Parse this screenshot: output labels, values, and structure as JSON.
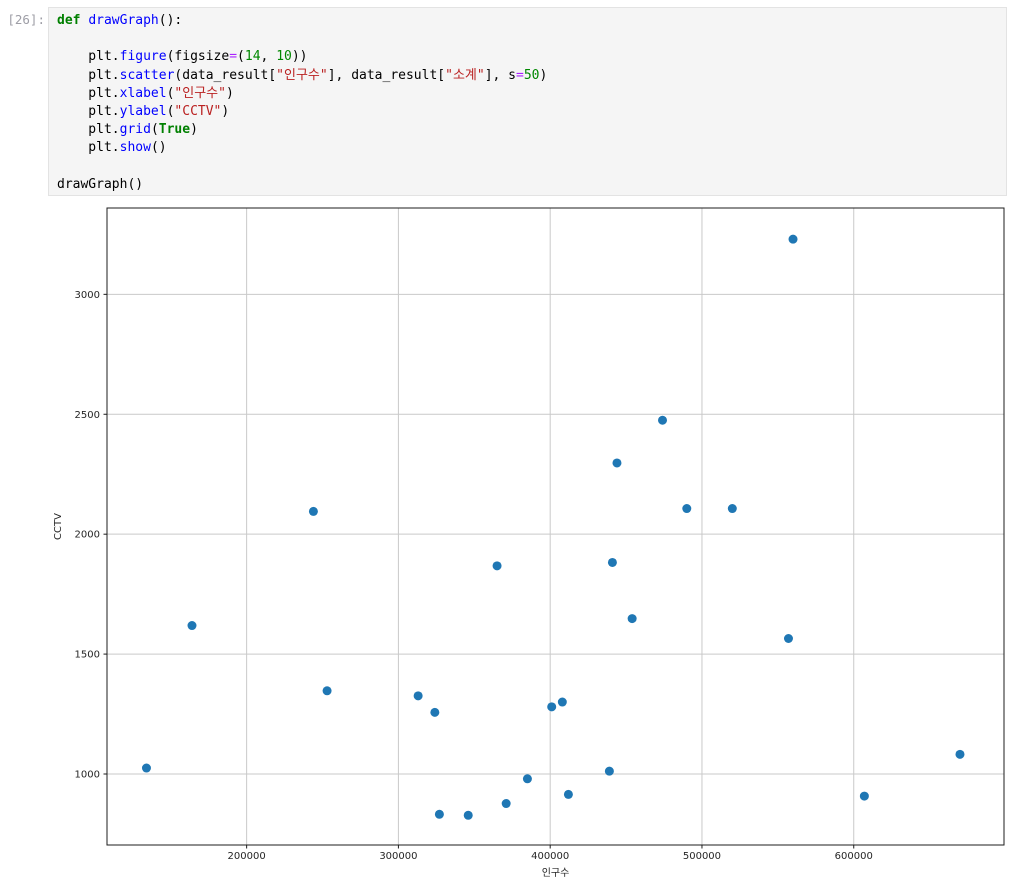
{
  "notebook": {
    "execution_count": "[26]:",
    "cell_type": "code",
    "code_lines": [
      [
        {
          "t": "def",
          "c": "kw"
        },
        {
          "t": " ",
          "c": "p"
        },
        {
          "t": "drawGraph",
          "c": "fn"
        },
        {
          "t": "():",
          "c": "p"
        }
      ],
      [],
      [
        {
          "t": "    plt.",
          "c": "p"
        },
        {
          "t": "figure",
          "c": "fn"
        },
        {
          "t": "(figsize",
          "c": "p"
        },
        {
          "t": "=",
          "c": "op"
        },
        {
          "t": "(",
          "c": "p"
        },
        {
          "t": "14",
          "c": "num"
        },
        {
          "t": ", ",
          "c": "p"
        },
        {
          "t": "10",
          "c": "num"
        },
        {
          "t": "))",
          "c": "p"
        }
      ],
      [
        {
          "t": "    plt.",
          "c": "p"
        },
        {
          "t": "scatter",
          "c": "fn"
        },
        {
          "t": "(data_result[",
          "c": "p"
        },
        {
          "t": "\"인구수\"",
          "c": "str"
        },
        {
          "t": "], data_result[",
          "c": "p"
        },
        {
          "t": "\"소계\"",
          "c": "str"
        },
        {
          "t": "], s",
          "c": "p"
        },
        {
          "t": "=",
          "c": "op"
        },
        {
          "t": "50",
          "c": "num"
        },
        {
          "t": ")",
          "c": "p"
        }
      ],
      [
        {
          "t": "    plt.",
          "c": "p"
        },
        {
          "t": "xlabel",
          "c": "fn"
        },
        {
          "t": "(",
          "c": "p"
        },
        {
          "t": "\"인구수\"",
          "c": "str"
        },
        {
          "t": ")",
          "c": "p"
        }
      ],
      [
        {
          "t": "    plt.",
          "c": "p"
        },
        {
          "t": "ylabel",
          "c": "fn"
        },
        {
          "t": "(",
          "c": "p"
        },
        {
          "t": "\"CCTV\"",
          "c": "str"
        },
        {
          "t": ")",
          "c": "p"
        }
      ],
      [
        {
          "t": "    plt.",
          "c": "p"
        },
        {
          "t": "grid",
          "c": "fn"
        },
        {
          "t": "(",
          "c": "p"
        },
        {
          "t": "True",
          "c": "kw"
        },
        {
          "t": ")",
          "c": "p"
        }
      ],
      [
        {
          "t": "    plt.",
          "c": "p"
        },
        {
          "t": "show",
          "c": "fn"
        },
        {
          "t": "()",
          "c": "p"
        }
      ],
      [],
      [
        {
          "t": "drawGraph()",
          "c": "p"
        }
      ]
    ],
    "syntax_colors": {
      "keyword": "#008000",
      "function_name": "#0000ff",
      "string": "#ba2121",
      "number": "#008800",
      "operator": "#aa22ff",
      "prompt": "#9e9ea6",
      "cell_background": "#f5f5f5"
    }
  },
  "chart_data": {
    "type": "scatter",
    "title": "",
    "xlabel": "인구수",
    "ylabel": "CCTV",
    "grid": true,
    "legend": "none",
    "marker_color": "#1f77b4",
    "marker_size_s": 50,
    "xlim": [
      108000,
      699000
    ],
    "ylim": [
      704,
      3360
    ],
    "x_ticks": [
      200000,
      300000,
      400000,
      500000,
      600000
    ],
    "x_tick_labels": [
      "200000",
      "300000",
      "400000",
      "500000",
      "600000"
    ],
    "y_ticks": [
      1000,
      1500,
      2000,
      2500,
      3000
    ],
    "y_tick_labels": [
      "1000",
      "1500",
      "2000",
      "2500",
      "3000"
    ],
    "points": [
      [
        560000,
        3230
      ],
      [
        474000,
        2475
      ],
      [
        444000,
        2297
      ],
      [
        244000,
        2095
      ],
      [
        490000,
        2107
      ],
      [
        520000,
        2107
      ],
      [
        365000,
        1868
      ],
      [
        441000,
        1882
      ],
      [
        454000,
        1648
      ],
      [
        164000,
        1619
      ],
      [
        557000,
        1565
      ],
      [
        253000,
        1347
      ],
      [
        313000,
        1326
      ],
      [
        324000,
        1257
      ],
      [
        401000,
        1280
      ],
      [
        408000,
        1300
      ],
      [
        134000,
        1025
      ],
      [
        439000,
        1012
      ],
      [
        670000,
        1082
      ],
      [
        385000,
        980
      ],
      [
        371000,
        877
      ],
      [
        412000,
        915
      ],
      [
        327000,
        832
      ],
      [
        346000,
        828
      ],
      [
        607000,
        908
      ]
    ]
  },
  "figure_colors": {
    "grid": "#c9c9c9",
    "spine": "#1c1c1c",
    "tick_label": "#262626",
    "background": "#ffffff"
  }
}
